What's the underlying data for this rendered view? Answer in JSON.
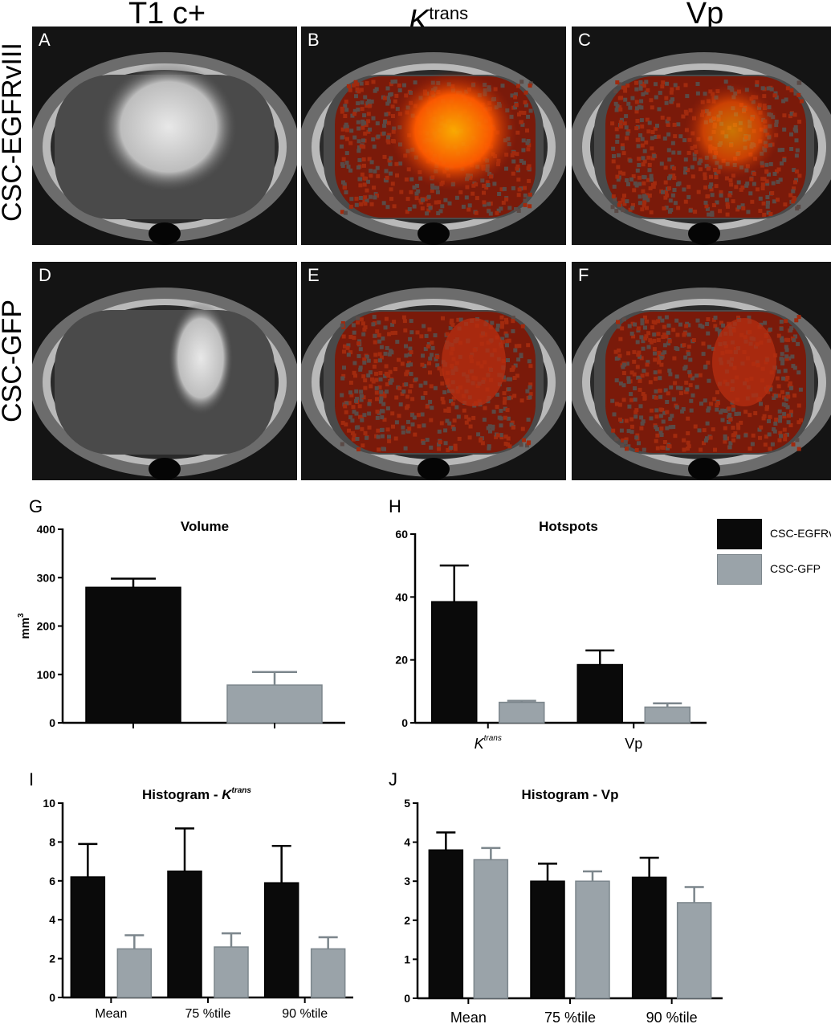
{
  "figure": {
    "column_headers": [
      "T1 c+",
      "K",
      "trans",
      "Vp"
    ],
    "row_headers": [
      "CSC-EGFRvIII",
      "CSC-GFP"
    ],
    "mri_panels": [
      "A",
      "B",
      "C",
      "D",
      "E",
      "F"
    ],
    "chart_letters": [
      "G",
      "H",
      "I",
      "J"
    ]
  },
  "legend": {
    "items": [
      {
        "label": "CSC-EGFRvIII",
        "color": "#0a0a0a"
      },
      {
        "label": "CSC-GFP",
        "color": "#9aa3a9"
      }
    ]
  },
  "colors": {
    "egfr": "#0a0a0a",
    "gfp": "#9aa3a9",
    "gfp_edge": "#7c868c",
    "map_hot": "#ff6a00",
    "map_base": "#7a1a0a"
  },
  "chart_data": [
    {
      "id": "G",
      "type": "bar",
      "title": "Volume",
      "ylabel": "mm",
      "ylabel_sup": "3",
      "ylim": [
        0,
        400
      ],
      "yticks": [
        0,
        100,
        200,
        300,
        400
      ],
      "categories": [
        "",
        ""
      ],
      "series": [
        {
          "name": "CSC-EGFRvIII",
          "values": [
            280,
            null
          ],
          "errors": [
            18,
            null
          ]
        },
        {
          "name": "CSC-GFP",
          "values": [
            null,
            78
          ],
          "errors": [
            null,
            27
          ]
        }
      ]
    },
    {
      "id": "H",
      "type": "bar",
      "title": "Hotspots",
      "ylim": [
        0,
        60
      ],
      "yticks": [
        0,
        20,
        40,
        60
      ],
      "categories": [
        "K",
        "Vp"
      ],
      "category_sup": [
        "trans",
        ""
      ],
      "series": [
        {
          "name": "CSC-EGFRvIII",
          "values": [
            38.5,
            18.5
          ],
          "errors": [
            11.5,
            4.5
          ]
        },
        {
          "name": "CSC-GFP",
          "values": [
            6.5,
            5
          ],
          "errors": [
            0.5,
            1.2
          ]
        }
      ]
    },
    {
      "id": "I",
      "type": "bar",
      "title": "Histogram - K",
      "title_sup": "trans",
      "ylim": [
        0,
        10
      ],
      "yticks": [
        0,
        2,
        4,
        6,
        8,
        10
      ],
      "categories": [
        "Mean",
        "75 %tile",
        "90 %tile"
      ],
      "series": [
        {
          "name": "CSC-EGFRvIII",
          "values": [
            6.2,
            6.5,
            5.9
          ],
          "errors": [
            1.7,
            2.2,
            1.9
          ]
        },
        {
          "name": "CSC-GFP",
          "values": [
            2.5,
            2.6,
            2.5
          ],
          "errors": [
            0.7,
            0.7,
            0.6
          ]
        }
      ]
    },
    {
      "id": "J",
      "type": "bar",
      "title": "Histogram - Vp",
      "ylim": [
        0,
        5
      ],
      "yticks": [
        0,
        1,
        2,
        3,
        4,
        5
      ],
      "categories": [
        "Mean",
        "75 %tile",
        "90 %tile"
      ],
      "series": [
        {
          "name": "CSC-EGFRvIII",
          "values": [
            3.8,
            3.0,
            3.1
          ],
          "errors": [
            0.45,
            0.45,
            0.5
          ]
        },
        {
          "name": "CSC-GFP",
          "values": [
            3.55,
            3.0,
            2.45
          ],
          "errors": [
            0.3,
            0.25,
            0.4
          ]
        }
      ]
    }
  ]
}
